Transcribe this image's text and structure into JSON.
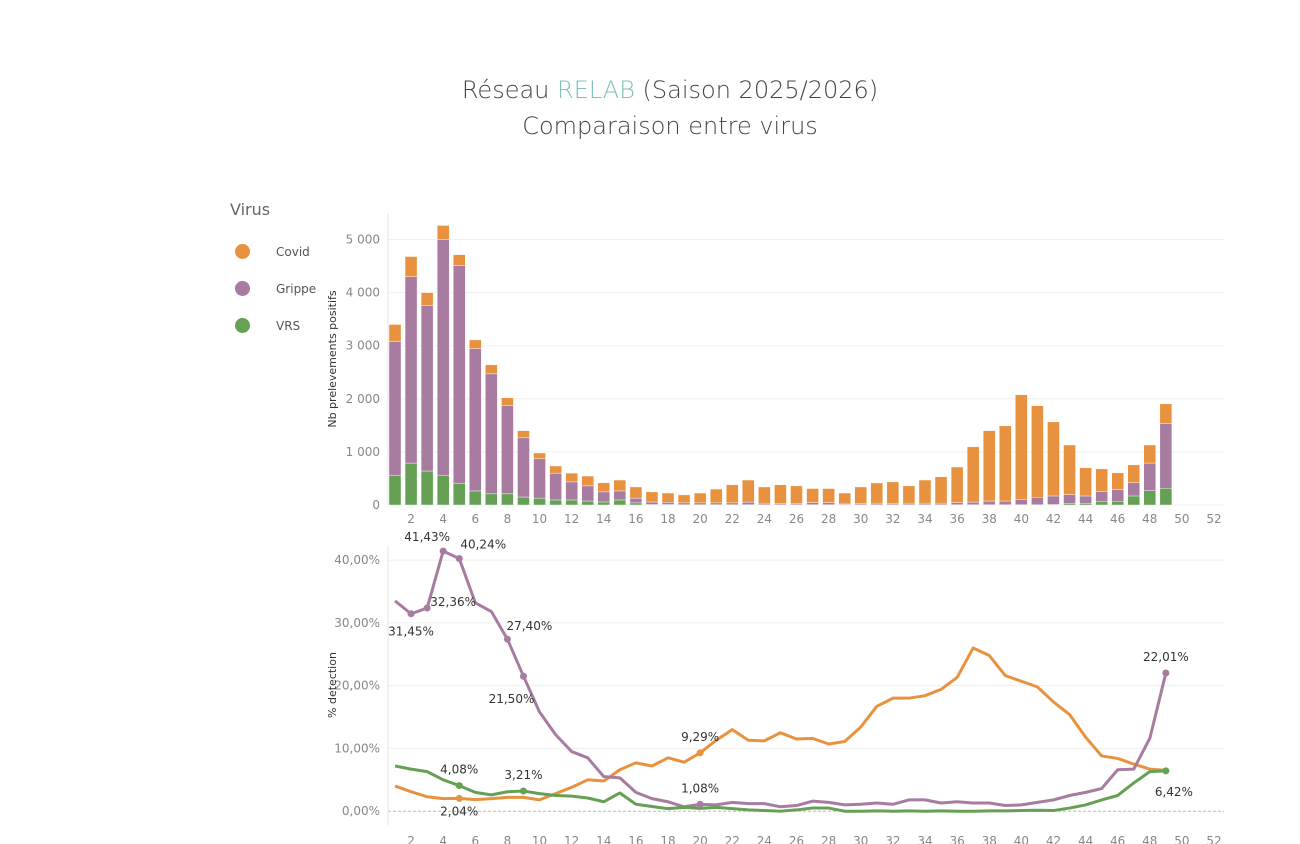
{
  "title": {
    "prefix": "Réseau ",
    "accent": "RELAB",
    "suffix": " (Saison 2025/2026)",
    "subtitle": "Comparaison entre virus",
    "accent_color": "#7fbfba"
  },
  "legend": {
    "title": "Virus",
    "items": [
      {
        "label": "Covid",
        "color": "#e8923f"
      },
      {
        "label": "Grippe",
        "color": "#a87ca0"
      },
      {
        "label": "VRS",
        "color": "#65a055"
      }
    ]
  },
  "chart_data": [
    {
      "type": "bar",
      "stacked": true,
      "ylabel": "Nb prelevements positifs",
      "xlabel": "",
      "ylim": [
        0,
        5500
      ],
      "yticks": [
        {
          "v": 0,
          "label": "0"
        },
        {
          "v": 1000,
          "label": "1 000"
        },
        {
          "v": 2000,
          "label": "2 000"
        },
        {
          "v": 3000,
          "label": "3 000"
        },
        {
          "v": 4000,
          "label": "4 000"
        },
        {
          "v": 5000,
          "label": "5 000"
        }
      ],
      "xticks": [
        2,
        4,
        6,
        8,
        10,
        12,
        14,
        16,
        18,
        20,
        22,
        24,
        26,
        28,
        30,
        32,
        34,
        36,
        38,
        40,
        42,
        44,
        46,
        48,
        50,
        52
      ],
      "xlim": [
        1,
        52
      ],
      "grid": true,
      "weeks": [
        1,
        2,
        3,
        4,
        5,
        6,
        7,
        8,
        9,
        10,
        11,
        12,
        13,
        14,
        15,
        16,
        17,
        18,
        19,
        20,
        21,
        22,
        23,
        24,
        25,
        26,
        27,
        28,
        29,
        30,
        31,
        32,
        33,
        34,
        35,
        36,
        37,
        38,
        39,
        40,
        41,
        42,
        43,
        44,
        45,
        46,
        47,
        48,
        49
      ],
      "series": [
        {
          "name": "VRS",
          "color": "#65a055",
          "values": [
            550,
            790,
            640,
            550,
            400,
            265,
            210,
            210,
            150,
            130,
            95,
            95,
            75,
            57,
            95,
            40,
            10,
            10,
            5,
            5,
            5,
            5,
            5,
            5,
            5,
            5,
            5,
            5,
            5,
            5,
            5,
            5,
            5,
            5,
            5,
            5,
            5,
            5,
            5,
            5,
            5,
            10,
            25,
            25,
            60,
            70,
            170,
            270,
            315
          ]
        },
        {
          "name": "Grippe",
          "color": "#a87ca0",
          "values": [
            2525,
            3510,
            3115,
            4450,
            4110,
            2680,
            2260,
            1660,
            1115,
            740,
            505,
            340,
            285,
            190,
            170,
            90,
            47,
            40,
            35,
            35,
            35,
            35,
            50,
            30,
            20,
            25,
            40,
            40,
            15,
            20,
            30,
            25,
            30,
            30,
            30,
            40,
            50,
            70,
            70,
            100,
            140,
            160,
            170,
            145,
            190,
            220,
            250,
            520,
            1215
          ]
        },
        {
          "name": "Covid",
          "color": "#e8923f",
          "values": [
            325,
            380,
            245,
            265,
            205,
            165,
            170,
            150,
            135,
            110,
            135,
            165,
            185,
            170,
            205,
            210,
            190,
            175,
            150,
            185,
            260,
            340,
            415,
            305,
            355,
            330,
            265,
            265,
            205,
            315,
            380,
            405,
            325,
            435,
            495,
            670,
            1040,
            1325,
            1415,
            1970,
            1725,
            1395,
            935,
            530,
            430,
            315,
            335,
            340,
            375
          ]
        }
      ]
    },
    {
      "type": "line",
      "ylabel": "% detection",
      "xlabel": "",
      "ylim": [
        -2.2,
        42.4
      ],
      "yticks": [
        {
          "v": 0,
          "label": "0,00%"
        },
        {
          "v": 10,
          "label": "10,00%"
        },
        {
          "v": 20,
          "label": "20,00%"
        },
        {
          "v": 30,
          "label": "30,00%"
        },
        {
          "v": 40,
          "label": "40,00%"
        }
      ],
      "xticks": [
        2,
        4,
        6,
        8,
        10,
        12,
        14,
        16,
        18,
        20,
        22,
        24,
        26,
        28,
        30,
        32,
        34,
        36,
        38,
        40,
        42,
        44,
        46,
        48,
        50,
        52
      ],
      "xlim": [
        1,
        52
      ],
      "grid": true,
      "weeks": [
        1,
        2,
        3,
        4,
        5,
        6,
        7,
        8,
        9,
        10,
        11,
        12,
        13,
        14,
        15,
        16,
        17,
        18,
        19,
        20,
        21,
        22,
        23,
        24,
        25,
        26,
        27,
        28,
        29,
        30,
        31,
        32,
        33,
        34,
        35,
        36,
        37,
        38,
        39,
        40,
        41,
        42,
        43,
        44,
        45,
        46,
        47,
        48,
        49
      ],
      "series": [
        {
          "name": "Covid",
          "color": "#e8923f",
          "values": [
            4.0,
            3.1,
            2.3,
            2.0,
            2.04,
            1.85,
            2.0,
            2.2,
            2.2,
            1.8,
            2.8,
            3.8,
            5.0,
            4.8,
            6.6,
            7.7,
            7.2,
            8.5,
            7.8,
            9.29,
            11.3,
            13.0,
            11.3,
            11.2,
            12.5,
            11.5,
            11.6,
            10.7,
            11.1,
            13.4,
            16.7,
            18.0,
            18.0,
            18.4,
            19.4,
            21.3,
            26.0,
            24.8,
            21.6,
            20.7,
            19.8,
            17.4,
            15.4,
            11.8,
            8.8,
            8.4,
            7.5,
            6.7,
            6.5
          ]
        },
        {
          "name": "Grippe",
          "color": "#a87ca0",
          "values": [
            33.5,
            31.45,
            32.36,
            41.43,
            40.24,
            33.2,
            31.8,
            27.4,
            21.5,
            15.8,
            12.2,
            9.5,
            8.5,
            5.5,
            5.3,
            3.0,
            2.0,
            1.5,
            0.7,
            1.08,
            1.0,
            1.4,
            1.2,
            1.2,
            0.7,
            0.9,
            1.6,
            1.4,
            1.0,
            1.1,
            1.3,
            1.1,
            1.8,
            1.8,
            1.3,
            1.5,
            1.3,
            1.3,
            0.9,
            1.0,
            1.4,
            1.8,
            2.5,
            3.0,
            3.6,
            6.6,
            6.7,
            11.6,
            22.01
          ]
        },
        {
          "name": "VRS",
          "color": "#65a055",
          "values": [
            7.2,
            6.7,
            6.3,
            5.0,
            4.08,
            3.0,
            2.6,
            3.1,
            3.21,
            2.8,
            2.5,
            2.4,
            2.1,
            1.5,
            2.9,
            1.1,
            0.75,
            0.4,
            0.6,
            0.45,
            0.6,
            0.4,
            0.2,
            0.1,
            0.0,
            0.2,
            0.5,
            0.5,
            0.0,
            0.0,
            0.05,
            0.0,
            0.05,
            0.0,
            0.05,
            0.0,
            0.0,
            0.05,
            0.05,
            0.1,
            0.15,
            0.1,
            0.5,
            1.0,
            1.8,
            2.5,
            4.5,
            6.3,
            6.42
          ]
        }
      ],
      "annotations": [
        {
          "series": "Grippe",
          "week": 2,
          "label": "31,45%"
        },
        {
          "series": "Grippe",
          "week": 3,
          "label": "32,36%"
        },
        {
          "series": "Grippe",
          "week": 4,
          "label": "41,43%"
        },
        {
          "series": "Grippe",
          "week": 5,
          "label": "40,24%"
        },
        {
          "series": "Grippe",
          "week": 8,
          "label": "27,40%"
        },
        {
          "series": "Grippe",
          "week": 9,
          "label": "21,50%"
        },
        {
          "series": "Grippe",
          "week": 20,
          "label": "1,08%"
        },
        {
          "series": "Grippe",
          "week": 49,
          "label": "22,01%"
        },
        {
          "series": "Covid",
          "week": 5,
          "label": "2,04%"
        },
        {
          "series": "Covid",
          "week": 20,
          "label": "9,29%"
        },
        {
          "series": "VRS",
          "week": 5,
          "label": "4,08%"
        },
        {
          "series": "VRS",
          "week": 9,
          "label": "3,21%"
        },
        {
          "series": "VRS",
          "week": 49,
          "label": "6,42%"
        }
      ]
    }
  ]
}
